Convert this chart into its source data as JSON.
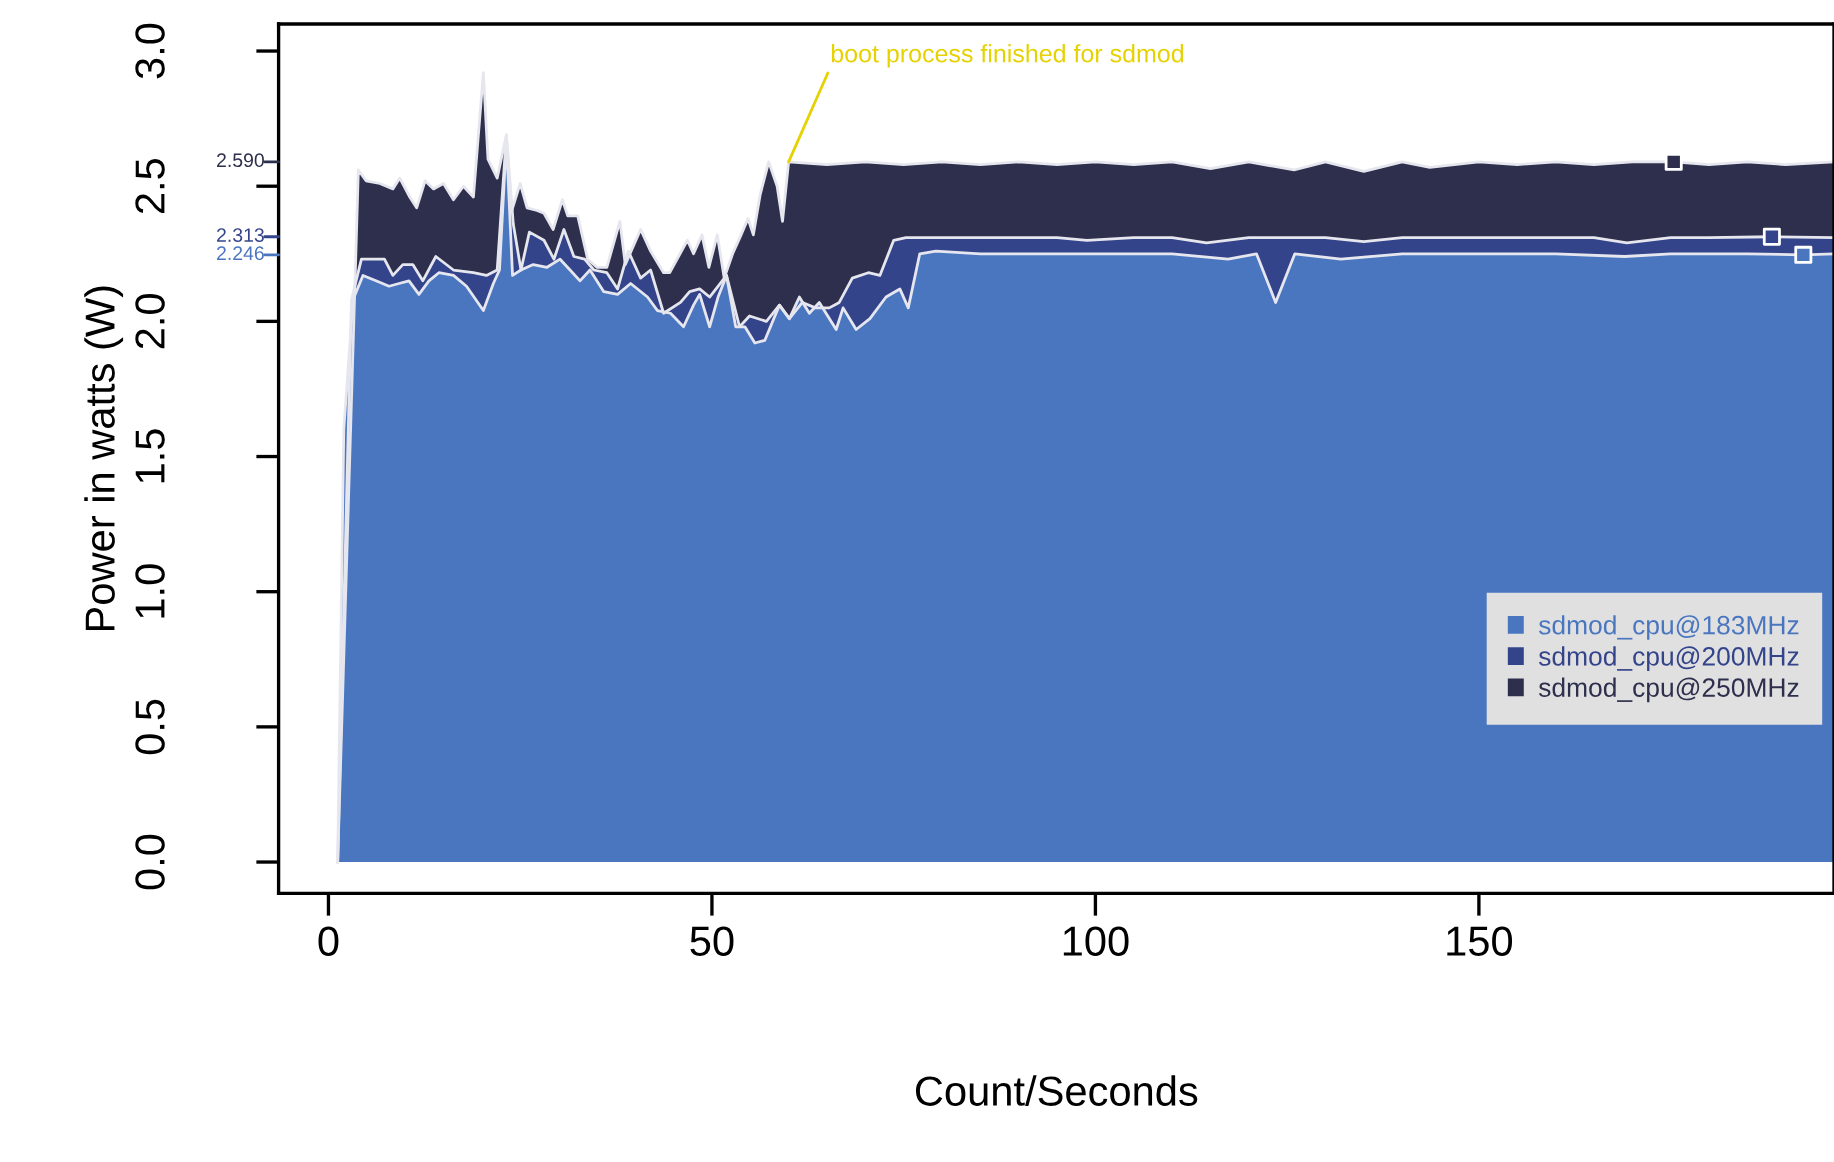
{
  "chart_data": {
    "type": "area",
    "xlabel": "Count/Seconds",
    "ylabel": "Power in watts (W)",
    "xlim": [
      -6.5,
      196.3
    ],
    "ylim": [
      -0.116,
      3.1
    ],
    "xticks": [
      0,
      50,
      100,
      150
    ],
    "yticks": [
      {
        "value": 0,
        "label": "0.0"
      },
      0.5,
      {
        "value": 1,
        "label": "1.0"
      },
      1.5,
      {
        "value": 2,
        "label": "2.0"
      },
      2.5,
      {
        "value": 3,
        "label": "3.0"
      }
    ],
    "grid": false,
    "legend": "right",
    "series": [
      {
        "name": "sdmod_cpu@250MHz",
        "color": "#2d2f4d",
        "x": [
          1.2,
          3.9,
          4.9,
          6.7,
          8.4,
          9.3,
          10.6,
          11.5,
          12.6,
          13.7,
          15,
          16.3,
          17.6,
          18.9,
          20.2,
          20.8,
          22,
          23.2,
          23.9,
          25,
          25.9,
          27.2,
          28.1,
          29.3,
          30.5,
          31.2,
          32.5,
          33.8,
          35,
          36.3,
          38,
          38.7,
          40.7,
          42,
          43.7,
          44.5,
          46.8,
          47.6,
          48.7,
          49.6,
          50.7,
          51.6,
          52.7,
          53.8,
          54.7,
          55.4,
          56.3,
          57.4,
          58.5,
          59.2,
          60,
          65,
          70,
          75,
          80,
          85,
          90,
          95,
          100,
          105,
          110,
          115,
          120,
          125.9,
          130,
          135,
          140,
          143.6,
          150,
          155,
          160,
          165,
          170,
          175.4,
          180,
          185,
          190,
          196.3
        ],
        "values": [
          0,
          2.56,
          2.52,
          2.51,
          2.49,
          2.53,
          2.46,
          2.42,
          2.52,
          2.49,
          2.51,
          2.45,
          2.5,
          2.46,
          2.92,
          2.6,
          2.53,
          2.69,
          2.41,
          2.51,
          2.42,
          2.41,
          2.4,
          2.34,
          2.45,
          2.39,
          2.39,
          2.23,
          2.2,
          2.2,
          2.37,
          2.21,
          2.34,
          2.26,
          2.18,
          2.18,
          2.3,
          2.25,
          2.32,
          2.2,
          2.32,
          2.16,
          2.25,
          2.32,
          2.38,
          2.32,
          2.47,
          2.59,
          2.5,
          2.37,
          2.59,
          2.58,
          2.59,
          2.58,
          2.59,
          2.58,
          2.59,
          2.58,
          2.59,
          2.58,
          2.59,
          2.565,
          2.59,
          2.56,
          2.59,
          2.555,
          2.59,
          2.57,
          2.59,
          2.58,
          2.59,
          2.58,
          2.59,
          2.59,
          2.58,
          2.59,
          2.58,
          2.59
        ]
      },
      {
        "name": "sdmod_cpu@200MHz",
        "color": "#33448a",
        "x": [
          1.2,
          3.0,
          4.3,
          6,
          7.3,
          8.4,
          9.7,
          11,
          12.3,
          14,
          16.3,
          18.9,
          20.6,
          22,
          23.2,
          24.1,
          25.1,
          26.2,
          28.1,
          29.4,
          30.7,
          32,
          33.4,
          34.6,
          36.3,
          37.7,
          39.1,
          40.7,
          42,
          43.7,
          45.9,
          47.1,
          48.4,
          49.7,
          51.9,
          53.6,
          54.9,
          57.1,
          58.8,
          60.1,
          61.8,
          63.5,
          65.3,
          66.6,
          68.3,
          70.4,
          71.9,
          73.7,
          75.3,
          78,
          85,
          90,
          95,
          98.9,
          105,
          110,
          114.5,
          120,
          125,
          130,
          135,
          140,
          145,
          150,
          155,
          160,
          165,
          169.3,
          175,
          180,
          188.2,
          196.3
        ],
        "values": [
          0,
          2.08,
          2.23,
          2.23,
          2.23,
          2.17,
          2.21,
          2.21,
          2.15,
          2.24,
          2.19,
          2.18,
          2.17,
          2.19,
          2.69,
          2.36,
          2.19,
          2.33,
          2.3,
          2.23,
          2.34,
          2.24,
          2.23,
          2.19,
          2.18,
          2.12,
          2.26,
          2.16,
          2.19,
          2.03,
          2.07,
          2.11,
          2.12,
          2.09,
          2.17,
          1.98,
          2.02,
          2.0,
          2.06,
          2.01,
          2.07,
          2.05,
          2.05,
          2.07,
          2.16,
          2.18,
          2.17,
          2.3,
          2.31,
          2.31,
          2.31,
          2.31,
          2.31,
          2.3,
          2.31,
          2.31,
          2.29,
          2.31,
          2.31,
          2.31,
          2.295,
          2.31,
          2.31,
          2.31,
          2.31,
          2.31,
          2.31,
          2.29,
          2.31,
          2.31,
          2.313,
          2.31
        ]
      },
      {
        "type": "scatter",
        "marker": "square",
        "x": [
          175.4,
          188.2,
          192.3
        ],
        "values": [
          2.59,
          2.313,
          2.246
        ],
        "colors": [
          "#2d2f4d",
          "#33448a",
          "#4a76c0"
        ]
      },
      {
        "name": "sdmod_cpu@183MHz",
        "color": "#4a76c0",
        "x": [
          1.2,
          2,
          3.2,
          4.5,
          6.2,
          7.9,
          9.2,
          10.5,
          11.8,
          13.1,
          14.4,
          16.3,
          18,
          20.2,
          21.5,
          22.3,
          23.2,
          24,
          25.1,
          26.7,
          28.5,
          30.2,
          31.5,
          32.8,
          34.1,
          35.9,
          37.7,
          39.4,
          41.6,
          42.9,
          44.6,
          46.3,
          47.6,
          48.4,
          49.7,
          50.8,
          51.9,
          53.1,
          54.3,
          55.6,
          56.9,
          58.8,
          60.1,
          61.4,
          62.7,
          64,
          66.2,
          67.1,
          68.8,
          70.6,
          72.7,
          74.5,
          75.6,
          77.1,
          79.2,
          85,
          90,
          95,
          100,
          105,
          110,
          117.3,
          121,
          123.5,
          126,
          132,
          140,
          145,
          150,
          155,
          160,
          169,
          175,
          180,
          185,
          192.3,
          196.3
        ],
        "values": [
          0,
          1.6,
          2.08,
          2.17,
          2.15,
          2.13,
          2.14,
          2.15,
          2.1,
          2.15,
          2.18,
          2.17,
          2.13,
          2.04,
          2.14,
          2.19,
          2.67,
          2.17,
          2.19,
          2.21,
          2.2,
          2.23,
          2.19,
          2.15,
          2.19,
          2.11,
          2.1,
          2.14,
          2.09,
          2.04,
          2.03,
          1.98,
          2.06,
          2.1,
          1.98,
          2.09,
          2.17,
          1.98,
          1.98,
          1.92,
          1.93,
          2.06,
          2.01,
          2.09,
          2.03,
          2.07,
          1.97,
          2.05,
          1.97,
          2.01,
          2.09,
          2.12,
          2.05,
          2.25,
          2.26,
          2.25,
          2.25,
          2.25,
          2.25,
          2.25,
          2.25,
          2.23,
          2.25,
          2.07,
          2.25,
          2.23,
          2.25,
          2.25,
          2.25,
          2.25,
          2.25,
          2.24,
          2.25,
          2.25,
          2.25,
          2.246,
          2.25
        ]
      }
    ],
    "annotations": [
      {
        "text": "boot process finished for sdmod",
        "x": 60,
        "y": 2.59
      },
      "2.590",
      "2.313",
      "2.246"
    ]
  }
}
